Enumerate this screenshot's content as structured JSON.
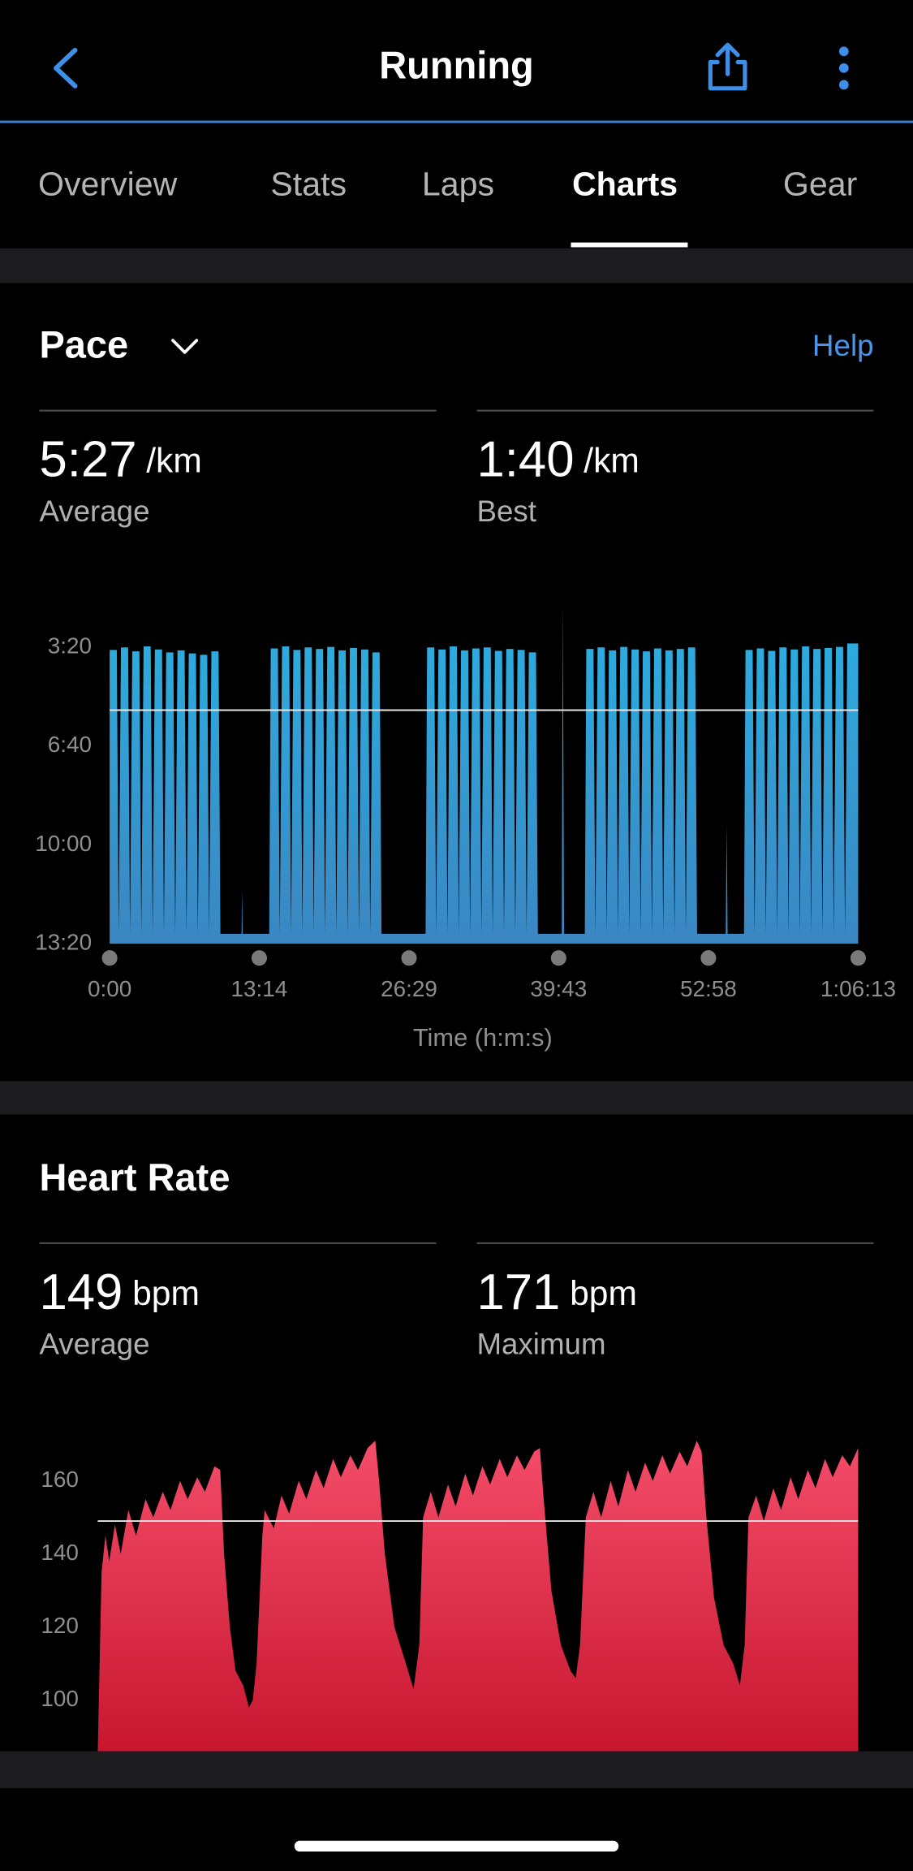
{
  "header": {
    "title": "Running"
  },
  "tabs": [
    "Overview",
    "Stats",
    "Laps",
    "Charts",
    "Gear"
  ],
  "active_tab": 3,
  "chart_data": [
    {
      "type": "area",
      "title": "Pace",
      "help": "Help",
      "stats": [
        {
          "value": "5:27",
          "unit": "/km",
          "label": "Average"
        },
        {
          "value": "1:40",
          "unit": "/km",
          "label": "Best"
        }
      ],
      "xlabel": "Time (h:m:s)",
      "color": "#2cb0e2",
      "average": 327,
      "xlim": [
        0,
        3973
      ],
      "xticks": [
        {
          "value": 0,
          "label": "0:00"
        },
        {
          "value": 794,
          "label": "13:14"
        },
        {
          "value": 1589,
          "label": "26:29"
        },
        {
          "value": 2383,
          "label": "39:43"
        },
        {
          "value": 3178,
          "label": "52:58"
        },
        {
          "value": 3973,
          "label": "1:06:13"
        }
      ],
      "ylim": [
        800,
        100
      ],
      "yticks": [
        {
          "value": 200,
          "label": "3:20"
        },
        {
          "value": 400,
          "label": "6:40"
        },
        {
          "value": 600,
          "label": "10:00"
        },
        {
          "value": 800,
          "label": "13:20"
        }
      ],
      "x": [
        0,
        38,
        48,
        60,
        98,
        108,
        120,
        158,
        168,
        180,
        218,
        228,
        240,
        278,
        288,
        300,
        338,
        348,
        360,
        398,
        408,
        420,
        458,
        468,
        480,
        518,
        528,
        540,
        578,
        588,
        700,
        703,
        706,
        847,
        855,
        893,
        903,
        915,
        953,
        963,
        975,
        1013,
        1023,
        1035,
        1073,
        1083,
        1095,
        1133,
        1143,
        1155,
        1193,
        1203,
        1215,
        1253,
        1263,
        1275,
        1313,
        1323,
        1335,
        1373,
        1383,
        1395,
        1433,
        1443,
        1677,
        1685,
        1723,
        1733,
        1745,
        1783,
        1793,
        1805,
        1843,
        1853,
        1865,
        1903,
        1913,
        1925,
        1963,
        1973,
        1985,
        2023,
        2033,
        2045,
        2083,
        2093,
        2105,
        2143,
        2153,
        2165,
        2203,
        2213,
        2225,
        2263,
        2273,
        2400,
        2405,
        2412,
        2522,
        2530,
        2568,
        2578,
        2590,
        2628,
        2638,
        2650,
        2688,
        2698,
        2710,
        2748,
        2758,
        2770,
        2808,
        2818,
        2830,
        2868,
        2878,
        2890,
        2928,
        2938,
        2950,
        2988,
        2998,
        3010,
        3048,
        3058,
        3070,
        3108,
        3118,
        3270,
        3275,
        3280,
        3367,
        3375,
        3413,
        3423,
        3435,
        3473,
        3483,
        3495,
        3533,
        3543,
        3555,
        3593,
        3603,
        3615,
        3653,
        3663,
        3675,
        3713,
        3723,
        3735,
        3773,
        3783,
        3795,
        3833,
        3843,
        3855,
        3893,
        3903,
        3915,
        3973
      ],
      "values": [
        205,
        205,
        780,
        200,
        200,
        780,
        208,
        208,
        780,
        198,
        198,
        780,
        204,
        204,
        780,
        210,
        210,
        780,
        206,
        206,
        780,
        212,
        212,
        780,
        215,
        215,
        780,
        208,
        208,
        780,
        780,
        690,
        780,
        780,
        202,
        202,
        780,
        198,
        198,
        780,
        205,
        205,
        780,
        200,
        200,
        780,
        203,
        203,
        780,
        199,
        199,
        780,
        206,
        206,
        780,
        201,
        201,
        780,
        204,
        204,
        780,
        210,
        210,
        780,
        780,
        200,
        200,
        780,
        204,
        204,
        780,
        198,
        198,
        780,
        206,
        206,
        780,
        202,
        202,
        780,
        200,
        200,
        780,
        207,
        207,
        780,
        203,
        203,
        780,
        205,
        205,
        780,
        210,
        210,
        780,
        780,
        110,
        780,
        780,
        203,
        203,
        780,
        200,
        200,
        780,
        206,
        206,
        780,
        199,
        199,
        780,
        204,
        204,
        780,
        208,
        208,
        780,
        202,
        202,
        780,
        206,
        206,
        780,
        203,
        203,
        780,
        200,
        200,
        780,
        780,
        560,
        780,
        780,
        205,
        205,
        780,
        202,
        202,
        780,
        207,
        207,
        780,
        200,
        200,
        780,
        204,
        204,
        780,
        198,
        198,
        780,
        203,
        203,
        780,
        201,
        201,
        780,
        199,
        199,
        780,
        192,
        192
      ]
    },
    {
      "type": "area",
      "title": "Heart Rate",
      "stats": [
        {
          "value": 149,
          "unit": "bpm",
          "label": "Average"
        },
        {
          "value": 171,
          "unit": "bpm",
          "label": "Maximum"
        }
      ],
      "color": "#f44d6a",
      "average": 149,
      "xlim": [
        0,
        3973
      ],
      "ylim": [
        86,
        172
      ],
      "yticks": [
        100,
        120,
        140,
        160
      ],
      "x": [
        0,
        20,
        40,
        60,
        90,
        120,
        160,
        200,
        250,
        290,
        340,
        380,
        430,
        470,
        520,
        560,
        610,
        640,
        660,
        690,
        720,
        760,
        790,
        810,
        830,
        860,
        872,
        920,
        960,
        1000,
        1050,
        1090,
        1140,
        1180,
        1230,
        1270,
        1320,
        1360,
        1410,
        1450,
        1470,
        1500,
        1550,
        1610,
        1650,
        1680,
        1700,
        1740,
        1780,
        1830,
        1870,
        1920,
        1960,
        2010,
        2050,
        2100,
        2140,
        2190,
        2230,
        2280,
        2310,
        2330,
        2370,
        2420,
        2470,
        2497,
        2520,
        2550,
        2590,
        2630,
        2680,
        2720,
        2770,
        2810,
        2860,
        2900,
        2950,
        2990,
        3040,
        3080,
        3130,
        3155,
        3180,
        3220,
        3270,
        3320,
        3355,
        3380,
        3400,
        3440,
        3480,
        3530,
        3570,
        3620,
        3660,
        3710,
        3750,
        3800,
        3840,
        3890,
        3930,
        3973
      ],
      "values": [
        86,
        135,
        145,
        138,
        148,
        140,
        152,
        145,
        155,
        150,
        157,
        152,
        160,
        155,
        161,
        157,
        164,
        163,
        140,
        120,
        108,
        104,
        98,
        100,
        110,
        145,
        152,
        147,
        156,
        151,
        160,
        155,
        163,
        158,
        166,
        161,
        167,
        163,
        169,
        171,
        160,
        140,
        120,
        110,
        103,
        115,
        150,
        157,
        150,
        159,
        153,
        162,
        156,
        164,
        159,
        166,
        161,
        167,
        163,
        168,
        169,
        155,
        130,
        115,
        108,
        106,
        115,
        150,
        157,
        150,
        160,
        153,
        163,
        157,
        165,
        160,
        167,
        162,
        168,
        164,
        171,
        168,
        150,
        128,
        115,
        110,
        104,
        115,
        150,
        156,
        149,
        158,
        152,
        161,
        155,
        163,
        158,
        166,
        161,
        167,
        164,
        169
      ]
    }
  ]
}
